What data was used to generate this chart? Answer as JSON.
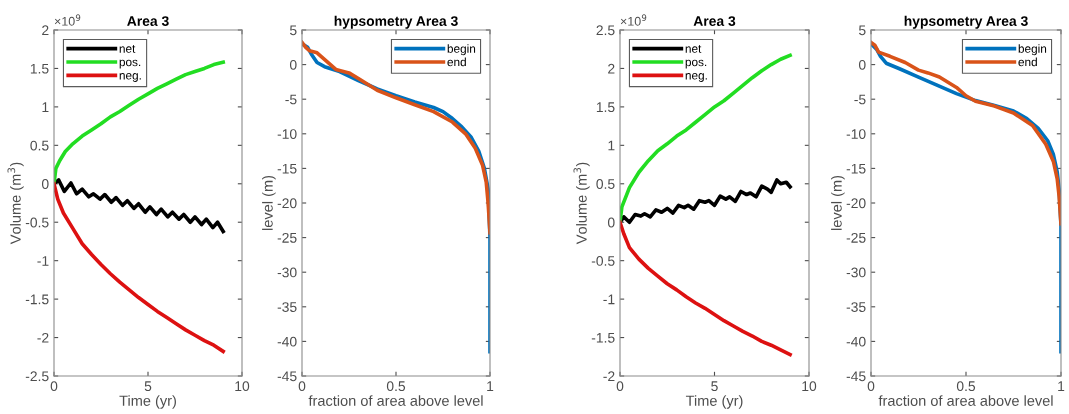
{
  "chart_data": [
    {
      "type": "line",
      "title": "Area 3",
      "xlabel": "Time (yr)",
      "ylabel": "Volume (m$^{3}$)",
      "annotations": [
        "×10$^{9}$"
      ],
      "xlim": [
        0,
        10
      ],
      "xticks": [
        0,
        5,
        10
      ],
      "ylim": [
        -2.5,
        2
      ],
      "yticks": [
        -2.5,
        -2,
        -1.5,
        -1,
        -0.5,
        0,
        0.5,
        1,
        1.5,
        2
      ],
      "legend": "top left",
      "grid": false,
      "series": [
        {
          "name": "net",
          "color": "#000000",
          "x": [
            0,
            0.25,
            0.55,
            0.9,
            1.2,
            1.5,
            1.85,
            2.1,
            2.45,
            2.7,
            3.05,
            3.3,
            3.65,
            3.9,
            4.25,
            4.5,
            4.85,
            5.1,
            5.45,
            5.7,
            6.05,
            6.3,
            6.65,
            6.9,
            7.25,
            7.5,
            7.85,
            8.1,
            8.45,
            8.7,
            9.0
          ],
          "values": [
            0,
            0.05,
            -0.1,
            0.01,
            -0.13,
            -0.07,
            -0.17,
            -0.13,
            -0.2,
            -0.14,
            -0.24,
            -0.18,
            -0.28,
            -0.22,
            -0.32,
            -0.26,
            -0.37,
            -0.3,
            -0.4,
            -0.33,
            -0.43,
            -0.37,
            -0.46,
            -0.4,
            -0.5,
            -0.43,
            -0.53,
            -0.46,
            -0.57,
            -0.5,
            -0.62
          ]
        },
        {
          "name": "pos.",
          "color": "#22dd22",
          "x": [
            0,
            0.1,
            0.3,
            0.6,
            1,
            1.5,
            2,
            2.5,
            3,
            3.5,
            4,
            4.5,
            5,
            5.5,
            6,
            6.5,
            7,
            7.5,
            8,
            8.5,
            9
          ],
          "values": [
            0,
            0.2,
            0.3,
            0.42,
            0.52,
            0.62,
            0.7,
            0.78,
            0.87,
            0.94,
            1.02,
            1.1,
            1.17,
            1.24,
            1.3,
            1.36,
            1.42,
            1.46,
            1.5,
            1.55,
            1.58
          ]
        },
        {
          "name": "neg.",
          "color": "#dd1111",
          "x": [
            0,
            0.2,
            0.5,
            1,
            1.5,
            2,
            2.5,
            3,
            3.5,
            4,
            4.5,
            5,
            5.5,
            6,
            6.5,
            7,
            7.5,
            8,
            8.5,
            9
          ],
          "values": [
            0,
            -0.2,
            -0.38,
            -0.58,
            -0.78,
            -0.92,
            -1.05,
            -1.17,
            -1.28,
            -1.38,
            -1.48,
            -1.57,
            -1.66,
            -1.74,
            -1.82,
            -1.9,
            -1.97,
            -2.04,
            -2.1,
            -2.18
          ]
        }
      ]
    },
    {
      "type": "line",
      "title": "hypsometry Area 3",
      "xlabel": "fraction of area above level",
      "ylabel": "level (m)",
      "xlim": [
        0,
        1
      ],
      "xticks": [
        0,
        0.5,
        1
      ],
      "ylim": [
        -45,
        5
      ],
      "yticks": [
        -45,
        -40,
        -35,
        -30,
        -25,
        -20,
        -15,
        -10,
        -5,
        0,
        5
      ],
      "legend": "top right",
      "grid": false,
      "series": [
        {
          "name": "begin",
          "color": "#0072bd",
          "x": [
            0.0,
            0.03,
            0.05,
            0.08,
            0.12,
            0.2,
            0.3,
            0.4,
            0.5,
            0.6,
            0.7,
            0.75,
            0.8,
            0.85,
            0.9,
            0.94,
            0.97,
            0.99,
            1.0,
            1.0
          ],
          "values": [
            3,
            2.5,
            1.5,
            0.3,
            -0.3,
            -1,
            -2.3,
            -3.5,
            -4.5,
            -5.4,
            -6.2,
            -6.8,
            -7.8,
            -9,
            -10.5,
            -12.5,
            -15,
            -18,
            -25,
            -41.5
          ]
        },
        {
          "name": "end",
          "color": "#d95319",
          "x": [
            0,
            0.02,
            0.04,
            0.08,
            0.13,
            0.18,
            0.25,
            0.3,
            0.4,
            0.5,
            0.6,
            0.7,
            0.8,
            0.87,
            0.92,
            0.96,
            0.98,
            0.99,
            1.0
          ],
          "values": [
            3.2,
            2.5,
            2,
            1.7,
            0.5,
            -0.7,
            -1.2,
            -2,
            -3.7,
            -4.8,
            -5.8,
            -6.8,
            -8.3,
            -10,
            -12,
            -14.5,
            -17,
            -20,
            -24.3
          ]
        }
      ]
    },
    {
      "type": "line",
      "title": "Area 3",
      "xlabel": "Time (yr)",
      "ylabel": "Volume (m$^{3}$)",
      "annotations": [
        "×10$^{9}$"
      ],
      "xlim": [
        0,
        10
      ],
      "xticks": [
        0,
        5,
        10
      ],
      "ylim": [
        -2,
        2.5
      ],
      "yticks": [
        -2,
        -1.5,
        -1,
        -0.5,
        0,
        0.5,
        1,
        1.5,
        2,
        2.5
      ],
      "legend": "top left",
      "grid": false,
      "series": [
        {
          "name": "net",
          "color": "#000000",
          "x": [
            0,
            0.2,
            0.5,
            0.8,
            1.1,
            1.3,
            1.6,
            1.9,
            2.2,
            2.5,
            2.8,
            3.1,
            3.4,
            3.6,
            3.9,
            4.2,
            4.5,
            4.7,
            5.0,
            5.3,
            5.6,
            5.8,
            6.1,
            6.4,
            6.7,
            6.9,
            7.2,
            7.5,
            7.8,
            8.0,
            8.3,
            8.5,
            8.8,
            9.0
          ],
          "values": [
            0,
            0.07,
            0.0,
            0.1,
            0.08,
            0.11,
            0.07,
            0.16,
            0.13,
            0.18,
            0.12,
            0.22,
            0.19,
            0.22,
            0.17,
            0.28,
            0.26,
            0.28,
            0.22,
            0.34,
            0.3,
            0.33,
            0.27,
            0.4,
            0.36,
            0.38,
            0.33,
            0.47,
            0.43,
            0.39,
            0.55,
            0.5,
            0.52,
            0.46
          ]
        },
        {
          "name": "pos.",
          "color": "#22dd22",
          "x": [
            0,
            0.1,
            0.5,
            1,
            1.5,
            2,
            2.5,
            3,
            3.5,
            4,
            4.5,
            5,
            5.5,
            6,
            6.5,
            7,
            7.5,
            8,
            8.5,
            9
          ],
          "values": [
            0,
            0.2,
            0.45,
            0.65,
            0.8,
            0.93,
            1.02,
            1.12,
            1.2,
            1.3,
            1.4,
            1.5,
            1.58,
            1.68,
            1.78,
            1.88,
            1.97,
            2.05,
            2.12,
            2.17
          ]
        },
        {
          "name": "neg.",
          "color": "#dd1111",
          "x": [
            0,
            0.2,
            0.5,
            1,
            1.5,
            2,
            2.5,
            3,
            3.5,
            4,
            4.5,
            5,
            5.5,
            6,
            6.5,
            7,
            7.5,
            8,
            8.5,
            9
          ],
          "values": [
            0,
            -0.15,
            -0.33,
            -0.48,
            -0.6,
            -0.7,
            -0.8,
            -0.88,
            -0.97,
            -1.05,
            -1.12,
            -1.2,
            -1.28,
            -1.35,
            -1.42,
            -1.48,
            -1.55,
            -1.6,
            -1.66,
            -1.72
          ]
        }
      ]
    },
    {
      "type": "line",
      "title": "hypsometry Area 3",
      "xlabel": "fraction of area above level",
      "ylabel": "level (m)",
      "xlim": [
        0,
        1
      ],
      "xticks": [
        0,
        0.5,
        1
      ],
      "ylim": [
        -45,
        5
      ],
      "yticks": [
        -45,
        -40,
        -35,
        -30,
        -25,
        -20,
        -15,
        -10,
        -5,
        0,
        5
      ],
      "legend": "top right",
      "grid": false,
      "series": [
        {
          "name": "begin",
          "color": "#0072bd",
          "x": [
            0,
            0.03,
            0.05,
            0.08,
            0.15,
            0.25,
            0.35,
            0.45,
            0.55,
            0.65,
            0.75,
            0.82,
            0.88,
            0.93,
            0.96,
            0.98,
            0.99,
            1.0,
            1.0
          ],
          "values": [
            3,
            2.2,
            1.2,
            0.2,
            -0.6,
            -1.8,
            -3,
            -4.2,
            -5.2,
            -5.9,
            -6.7,
            -7.8,
            -9.2,
            -11,
            -13,
            -15.5,
            -18,
            -23.3,
            -41.5
          ]
        },
        {
          "name": "end",
          "color": "#d95319",
          "x": [
            0,
            0.02,
            0.04,
            0.1,
            0.18,
            0.25,
            0.3,
            0.36,
            0.45,
            0.5,
            0.55,
            0.65,
            0.75,
            0.85,
            0.92,
            0.96,
            0.98,
            0.99,
            1.0
          ],
          "values": [
            3.2,
            2.8,
            1.8,
            1.2,
            0.3,
            -0.8,
            -1.2,
            -1.8,
            -3.3,
            -4.5,
            -5.3,
            -6,
            -7,
            -8.8,
            -11.5,
            -14,
            -16.5,
            -19,
            -23
          ]
        }
      ]
    }
  ]
}
